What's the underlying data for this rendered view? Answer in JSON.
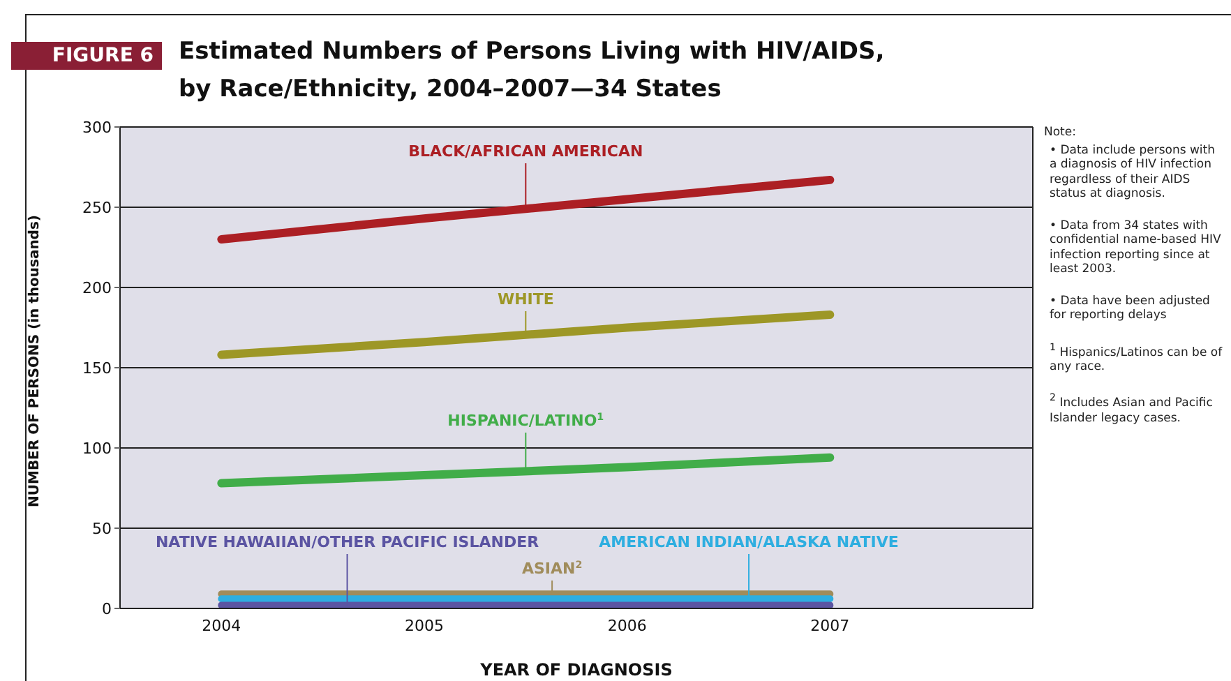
{
  "chart_data": {
    "type": "line",
    "title": "Estimated Numbers of Persons Living with HIV/AIDS, by Race/Ethnicity, 2004–2007—34 States",
    "subtitle": "FIGURE 6",
    "xlabel": "YEAR OF DIAGNOSIS",
    "ylabel": "NUMBER OF PERSONS (in thousands)",
    "x": [
      2004,
      2005,
      2006,
      2007
    ],
    "series": [
      {
        "name": "BLACK/AFRICAN AMERICAN",
        "color": "#ac1f24",
        "values": [
          230,
          243,
          255,
          267
        ]
      },
      {
        "name": "WHITE",
        "color": "#9d9726",
        "values": [
          158,
          166,
          175,
          183
        ]
      },
      {
        "name": "HISPANIC/LATINO$^{1}$",
        "color": "#41ad49",
        "values": [
          78,
          83,
          88,
          94
        ]
      },
      {
        "name": "ASIAN$^{2}$",
        "color": "#a08c5b",
        "values": [
          9,
          9,
          9,
          9
        ]
      },
      {
        "name": "AMERICAN INDIAN/ALASKA NATIVE",
        "color": "#2eaee0",
        "values": [
          6,
          6,
          6,
          6
        ]
      },
      {
        "name": "NATIVE HAWAIIAN/OTHER PACIFIC ISLANDER",
        "color": "#5b54a2",
        "values": [
          2,
          2,
          2,
          2
        ]
      }
    ],
    "xlim": [
      2003.5,
      2008
    ],
    "xticks": [
      2004,
      2005,
      2006,
      2007
    ],
    "ylim": [
      0,
      300
    ],
    "yticks": [
      0,
      50,
      100,
      150,
      200,
      250,
      300
    ],
    "grid": "y",
    "legend": false,
    "marker": "none",
    "line_style": "solid",
    "annotations": [
      "Note:",
      "• Data include persons with a diagnosis of HIV infection regardless of their AIDS status at diagnosis.",
      "• Data from 34 states with confidential name-based HIV infection reporting since at least 2003.",
      "• Data have been adjusted for reporting delays",
      "$^{1}$ Hispanics/Latinos can be of any race.",
      "$^{2}$ Includes Asian and Pacific Islander legacy cases."
    ]
  }
}
